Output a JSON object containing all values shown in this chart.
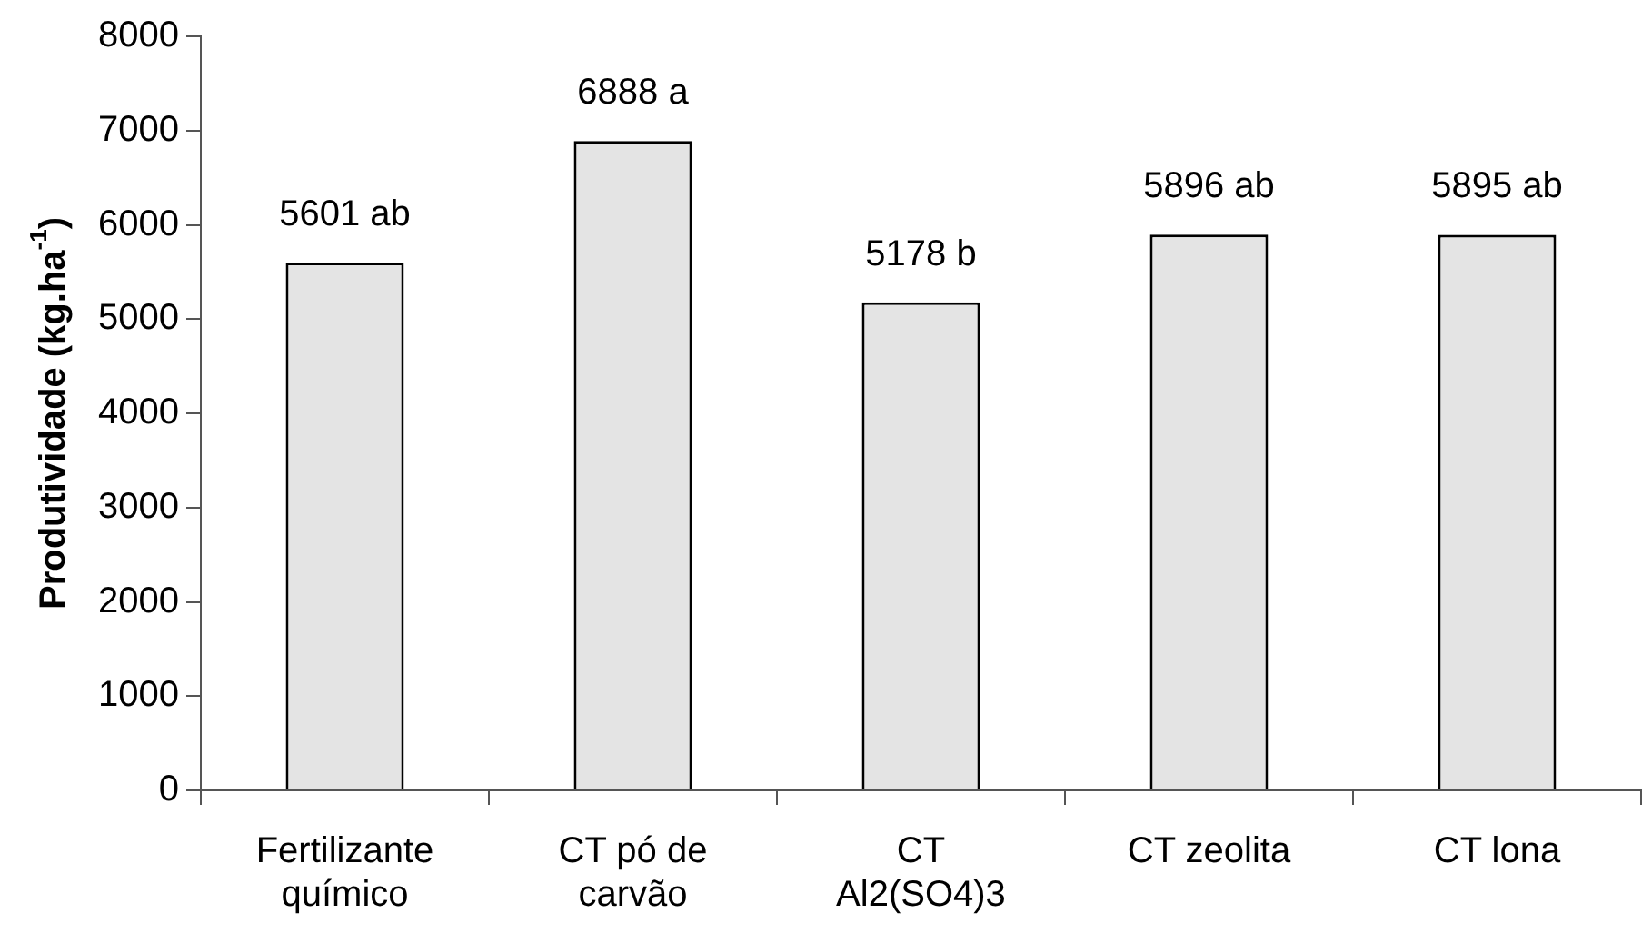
{
  "chart_data": {
    "type": "bar",
    "ylabel": "Produtividade (kg.ha$^{-1}$)",
    "categories": [
      "Fertilizante\nquímico",
      "CT pó de\ncarvão",
      "CT\nAl2(SO4)3",
      "CT zeolita",
      "CT lona"
    ],
    "values": [
      5601,
      6888,
      5178,
      5896,
      5895
    ],
    "value_labels": [
      "5601 ab",
      "6888 a",
      "5178 b",
      "5896 ab",
      "5895 ab"
    ],
    "color": "#e4e4e4",
    "ylim": [
      0,
      8000
    ],
    "yticks": [
      0,
      1000,
      2000,
      3000,
      4000,
      5000,
      6000,
      7000,
      8000
    ],
    "grid": false,
    "legend": false
  }
}
